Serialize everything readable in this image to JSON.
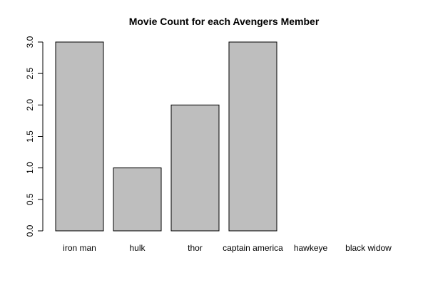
{
  "chart_data": {
    "type": "bar",
    "title": "Movie Count for each Avengers Member",
    "xlabel": "",
    "ylabel": "",
    "categories": [
      "iron man",
      "hulk",
      "thor",
      "captain america",
      "hawkeye",
      "black widow"
    ],
    "values": [
      3,
      1,
      2,
      3,
      0,
      0
    ],
    "ylim": [
      0,
      3
    ],
    "yticks": [
      "0.0",
      "0.5",
      "1.0",
      "1.5",
      "2.0",
      "2.5",
      "3.0"
    ],
    "bar_color": "#bebebe",
    "grid": false,
    "legend": "none"
  }
}
